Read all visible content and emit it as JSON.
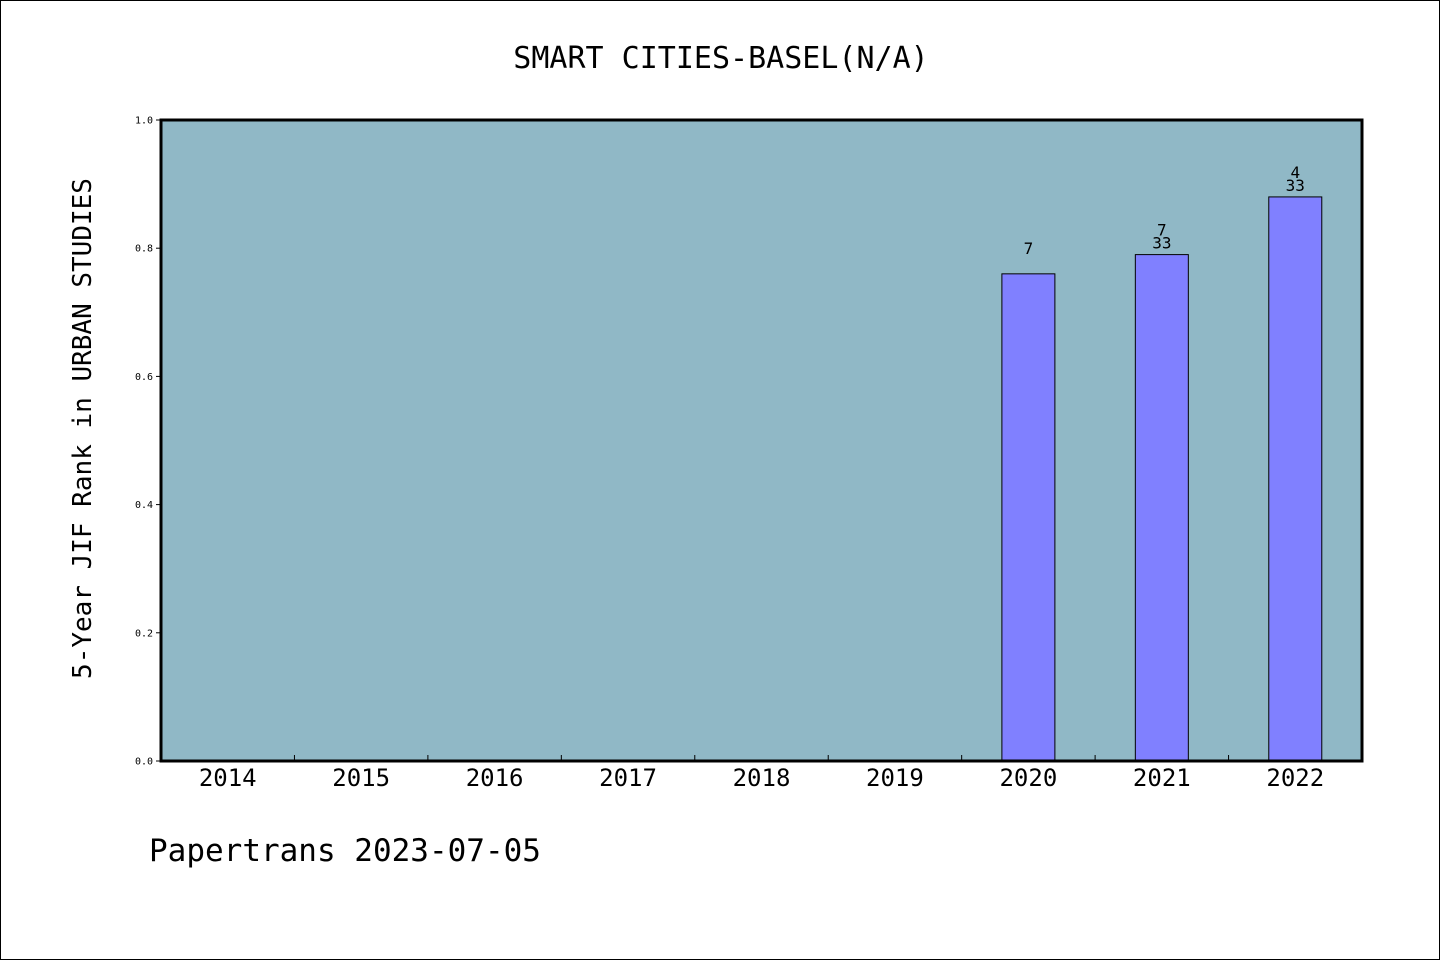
{
  "chart_data": {
    "type": "bar",
    "title": "SMART CITIES-BASEL(N/A)",
    "xlabel": "",
    "ylabel": "5-Year JIF Rank in URBAN STUDIES",
    "categories": [
      "2014",
      "2015",
      "2016",
      "2017",
      "2018",
      "2019",
      "2020",
      "2021",
      "2022"
    ],
    "values": [
      null,
      null,
      null,
      null,
      null,
      null,
      0.76,
      0.79,
      0.88
    ],
    "bar_labels": [
      null,
      null,
      null,
      null,
      null,
      null,
      {
        "top": "7",
        "bottom": ""
      },
      {
        "top": "7",
        "bottom": "33"
      },
      {
        "top": "4",
        "bottom": "33"
      }
    ],
    "ylim": [
      0,
      1.0
    ],
    "yticks": [
      "0.0",
      "0.2",
      "0.4",
      "0.6",
      "0.8",
      "1.0"
    ],
    "grid": false,
    "colors": {
      "plot_background": "#90b8c6",
      "bar": "#8080ff"
    }
  },
  "footer": {
    "text": "Papertrans 2023-07-05"
  }
}
